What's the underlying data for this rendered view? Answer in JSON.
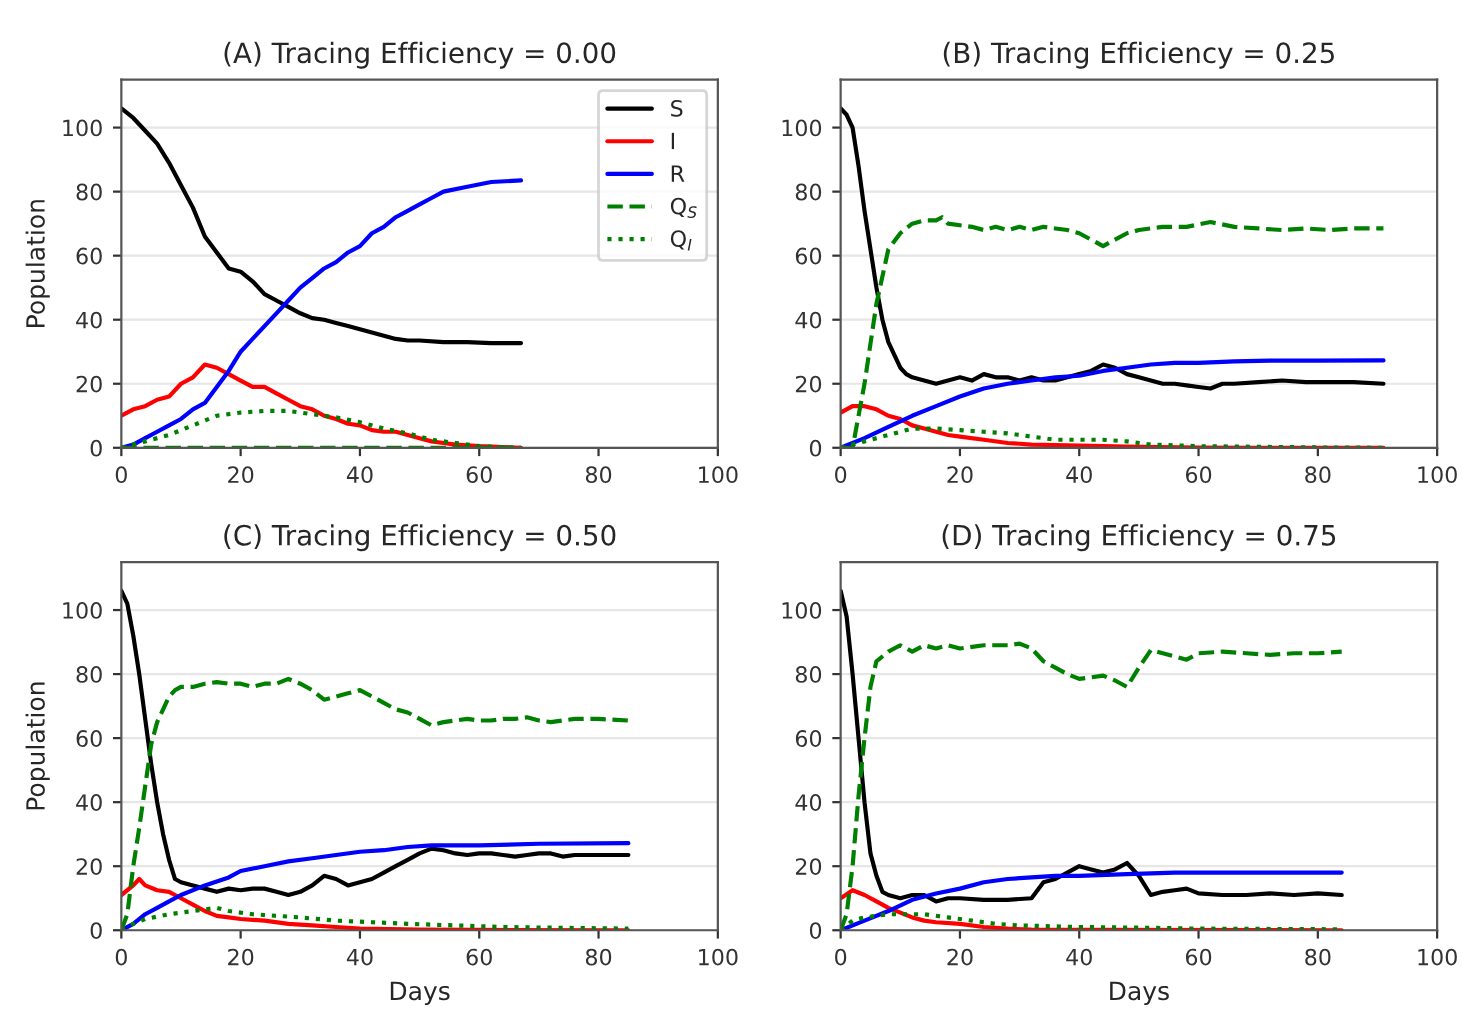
{
  "chart_data": [
    {
      "type": "line",
      "title": "(A) Tracing Efficiency = 0.00",
      "ylabel": "Population",
      "xlim": [
        0,
        100
      ],
      "ylim": [
        0,
        115
      ],
      "xticks": [
        0,
        20,
        40,
        60,
        80,
        100
      ],
      "yticks": [
        0,
        20,
        40,
        60,
        80,
        100
      ],
      "grid": "y",
      "legend": "top right",
      "series": [
        {
          "name": "S",
          "color": "#000000",
          "line_style": "solid",
          "x": [
            0,
            2,
            4,
            6,
            8,
            10,
            12,
            14,
            16,
            18,
            20,
            22,
            24,
            26,
            28,
            30,
            32,
            34,
            36,
            38,
            40,
            42,
            44,
            46,
            48,
            50,
            54,
            58,
            62,
            67
          ],
          "values": [
            106,
            103,
            99,
            95,
            89,
            82,
            75,
            66,
            61,
            56,
            55,
            52,
            48,
            46,
            44,
            42,
            40.5,
            40,
            39,
            38,
            37,
            36,
            35,
            34,
            33.5,
            33.5,
            33,
            33,
            32.7,
            32.7
          ]
        },
        {
          "name": "I",
          "color": "#ff0000",
          "line_style": "solid",
          "x": [
            0,
            2,
            4,
            6,
            8,
            10,
            12,
            14,
            16,
            18,
            20,
            22,
            24,
            26,
            28,
            30,
            32,
            34,
            36,
            38,
            40,
            42,
            44,
            46,
            48,
            50,
            52,
            54,
            56,
            60,
            64,
            67
          ],
          "values": [
            10,
            12,
            13,
            15,
            16,
            20,
            22,
            26,
            25,
            23,
            21,
            19,
            19,
            17,
            15,
            13,
            12,
            10,
            9,
            7.5,
            7,
            5.5,
            5,
            5,
            4,
            3,
            2,
            1.5,
            1,
            0.5,
            0.2,
            0
          ]
        },
        {
          "name": "R",
          "color": "#0000ff",
          "line_style": "solid",
          "x": [
            0,
            2,
            4,
            6,
            8,
            10,
            12,
            14,
            16,
            18,
            20,
            22,
            24,
            26,
            28,
            30,
            32,
            34,
            36,
            38,
            40,
            42,
            44,
            46,
            48,
            50,
            52,
            54,
            58,
            62,
            67
          ],
          "values": [
            0,
            1,
            3,
            5,
            7,
            9,
            12,
            14,
            19,
            24,
            30,
            34,
            38,
            42,
            46,
            50,
            53,
            56,
            58,
            61,
            63,
            67,
            69,
            72,
            74,
            76,
            78,
            80,
            81.5,
            83,
            83.5
          ]
        },
        {
          "name": "Q$_{S}$",
          "color": "#008000",
          "line_style": "dashed",
          "x": [
            0,
            67
          ],
          "values": [
            0,
            0
          ]
        },
        {
          "name": "Q$_{I}$",
          "color": "#008000",
          "line_style": "dotted",
          "x": [
            0,
            4,
            8,
            12,
            16,
            20,
            24,
            28,
            32,
            36,
            40,
            44,
            48,
            52,
            56,
            60,
            64,
            67
          ],
          "values": [
            0,
            2,
            4,
            7,
            10,
            11,
            11.5,
            11.5,
            10.5,
            9.5,
            8,
            6,
            4.5,
            2.5,
            1.5,
            0.5,
            0.2,
            0
          ]
        }
      ]
    },
    {
      "type": "line",
      "title": "(B) Tracing Efficiency = 0.25",
      "xlim": [
        0,
        100
      ],
      "ylim": [
        0,
        115
      ],
      "xticks": [
        0,
        20,
        40,
        60,
        80,
        100
      ],
      "yticks": [
        0,
        20,
        40,
        60,
        80,
        100
      ],
      "grid": "y",
      "series": [
        {
          "color": "#000000",
          "line_style": "solid",
          "x": [
            0,
            1,
            2,
            3,
            4,
            5,
            6,
            7,
            8,
            9,
            10,
            11,
            12,
            14,
            16,
            18,
            20,
            22,
            24,
            26,
            28,
            30,
            32,
            34,
            36,
            38,
            40,
            42,
            44,
            46,
            48,
            50,
            52,
            54,
            56,
            58,
            60,
            62,
            64,
            66,
            70,
            74,
            78,
            82,
            86,
            91
          ],
          "values": [
            106,
            104,
            100,
            88,
            74,
            62,
            50,
            40,
            33,
            29,
            25,
            23,
            22,
            21,
            20,
            21,
            22,
            21,
            23,
            22,
            22,
            21,
            22,
            21,
            21,
            22,
            23,
            24,
            26,
            25,
            23,
            22,
            21,
            20,
            20,
            19.5,
            19,
            18.5,
            20,
            20,
            20.5,
            21,
            20.5,
            20.5,
            20.5,
            20
          ]
        },
        {
          "color": "#ff0000",
          "line_style": "solid",
          "x": [
            0,
            2,
            4,
            6,
            8,
            10,
            12,
            14,
            16,
            18,
            20,
            24,
            28,
            32,
            40,
            50,
            60,
            70,
            91
          ],
          "values": [
            11,
            13,
            13,
            12,
            10,
            9,
            7,
            6,
            5,
            4,
            3.5,
            2.5,
            1.5,
            1,
            0.7,
            0.3,
            0.1,
            0,
            0
          ]
        },
        {
          "color": "#0000ff",
          "line_style": "solid",
          "x": [
            0,
            4,
            8,
            12,
            16,
            20,
            24,
            28,
            32,
            36,
            40,
            44,
            48,
            52,
            56,
            60,
            66,
            72,
            80,
            91
          ],
          "values": [
            0,
            3,
            6.5,
            10,
            13,
            16,
            18.5,
            20,
            21,
            22,
            22.5,
            24,
            25,
            26,
            26.5,
            26.5,
            27,
            27.2,
            27.2,
            27.3
          ]
        },
        {
          "color": "#008000",
          "line_style": "dashed",
          "x": [
            0,
            2,
            4,
            6,
            8,
            10,
            12,
            14,
            16,
            17,
            18,
            22,
            24,
            26,
            28,
            30,
            32,
            34,
            36,
            38,
            40,
            42,
            44,
            46,
            48,
            50,
            54,
            58,
            62,
            66,
            70,
            74,
            78,
            82,
            86,
            91
          ],
          "values": [
            0,
            0,
            20,
            45,
            62,
            67,
            70,
            71,
            71,
            72,
            70,
            69,
            68,
            69,
            68,
            69,
            68,
            69,
            68.5,
            68,
            67,
            65,
            63,
            65,
            67,
            68,
            69,
            69,
            70.5,
            69,
            68.5,
            68,
            68.5,
            68,
            68.5,
            68.5
          ]
        },
        {
          "color": "#008000",
          "line_style": "dotted",
          "x": [
            0,
            4,
            8,
            12,
            16,
            20,
            24,
            28,
            32,
            36,
            40,
            44,
            48,
            52,
            60,
            70,
            80,
            91
          ],
          "values": [
            0,
            2,
            4,
            6,
            6,
            5.5,
            5,
            4.5,
            3.5,
            2.5,
            2.5,
            2.5,
            2,
            1,
            0.5,
            0.3,
            0.1,
            0
          ]
        }
      ]
    },
    {
      "type": "line",
      "title": "(C) Tracing Efficiency = 0.50",
      "xlabel": "Days",
      "ylabel": "Population",
      "xlim": [
        0,
        100
      ],
      "ylim": [
        0,
        115
      ],
      "xticks": [
        0,
        20,
        40,
        60,
        80,
        100
      ],
      "yticks": [
        0,
        20,
        40,
        60,
        80,
        100
      ],
      "grid": "y",
      "series": [
        {
          "color": "#000000",
          "line_style": "solid",
          "x": [
            0,
            1,
            2,
            3,
            4,
            5,
            6,
            7,
            8,
            9,
            10,
            12,
            14,
            16,
            18,
            20,
            22,
            24,
            26,
            28,
            30,
            32,
            34,
            36,
            38,
            40,
            42,
            44,
            46,
            48,
            50,
            52,
            54,
            56,
            58,
            60,
            62,
            64,
            66,
            68,
            70,
            72,
            74,
            76,
            78,
            80,
            82,
            85
          ],
          "values": [
            106,
            102,
            92,
            80,
            66,
            52,
            40,
            30,
            22,
            16,
            15,
            14,
            13,
            12,
            13,
            12.5,
            13,
            13,
            12,
            11,
            12,
            14,
            17,
            16,
            14,
            15,
            16,
            18,
            20,
            22,
            24,
            25.5,
            25,
            24,
            23.5,
            24,
            24,
            23.5,
            23,
            23.5,
            24,
            24,
            23,
            23.5,
            23.5,
            23.5,
            23.5,
            23.5
          ]
        },
        {
          "color": "#ff0000",
          "line_style": "solid",
          "x": [
            0,
            2,
            3,
            4,
            6,
            8,
            10,
            12,
            14,
            16,
            18,
            20,
            24,
            28,
            32,
            36,
            40,
            50,
            60,
            85
          ],
          "values": [
            11,
            14,
            16,
            14,
            12.5,
            12,
            10,
            8,
            6,
            4.5,
            4,
            3.5,
            3,
            2,
            1.5,
            1,
            0.5,
            0.2,
            0.1,
            0
          ]
        },
        {
          "color": "#0000ff",
          "line_style": "solid",
          "x": [
            0,
            2,
            4,
            6,
            8,
            10,
            14,
            18,
            20,
            24,
            28,
            32,
            36,
            40,
            44,
            48,
            52,
            60,
            70,
            85
          ],
          "values": [
            0,
            2,
            5,
            7,
            9,
            11,
            14,
            16.5,
            18.5,
            20,
            21.5,
            22.5,
            23.5,
            24.5,
            25,
            26,
            26.5,
            26.5,
            27,
            27.2
          ]
        },
        {
          "color": "#008000",
          "line_style": "dashed",
          "x": [
            0,
            1,
            2,
            3,
            4,
            5,
            6,
            8,
            9,
            10,
            12,
            14,
            16,
            18,
            20,
            22,
            24,
            26,
            28,
            30,
            32,
            34,
            36,
            38,
            40,
            42,
            44,
            46,
            48,
            50,
            52,
            54,
            56,
            58,
            60,
            62,
            64,
            66,
            68,
            70,
            72,
            76,
            80,
            85
          ],
          "values": [
            0,
            5,
            20,
            32,
            45,
            58,
            65,
            73,
            75,
            76,
            76,
            77,
            77.5,
            77,
            77,
            76,
            77,
            77,
            78.5,
            77,
            75,
            72,
            73,
            74,
            75,
            73,
            71,
            69,
            68,
            66,
            64,
            65,
            65.5,
            66,
            65.5,
            65.5,
            66,
            66,
            66.5,
            65.5,
            65,
            66,
            66,
            65.5
          ]
        },
        {
          "color": "#008000",
          "line_style": "dotted",
          "x": [
            0,
            2,
            4,
            8,
            12,
            16,
            18,
            22,
            26,
            30,
            36,
            42,
            48,
            56,
            64,
            72,
            85
          ],
          "values": [
            0,
            2,
            3.5,
            5,
            6,
            7,
            6,
            5,
            4.5,
            4,
            3,
            2.5,
            2,
            1.5,
            1,
            0.8,
            0.5
          ]
        }
      ]
    },
    {
      "type": "line",
      "title": "(D) Tracing Efficiency = 0.75",
      "xlabel": "Days",
      "xlim": [
        0,
        100
      ],
      "ylim": [
        0,
        115
      ],
      "xticks": [
        0,
        20,
        40,
        60,
        80,
        100
      ],
      "yticks": [
        0,
        20,
        40,
        60,
        80,
        100
      ],
      "grid": "y",
      "series": [
        {
          "color": "#000000",
          "line_style": "solid",
          "x": [
            0,
            1,
            2,
            3,
            4,
            5,
            6,
            7,
            8,
            10,
            12,
            14,
            16,
            18,
            20,
            24,
            28,
            32,
            34,
            36,
            38,
            40,
            42,
            44,
            46,
            48,
            50,
            52,
            54,
            56,
            58,
            60,
            64,
            68,
            72,
            76,
            80,
            84
          ],
          "values": [
            106,
            98,
            80,
            60,
            40,
            24,
            17,
            12,
            11,
            10,
            11,
            11,
            9,
            10,
            10,
            9.5,
            9.5,
            10,
            15,
            16,
            18,
            20,
            19,
            18,
            19,
            21,
            17,
            11,
            12,
            12.5,
            13,
            11.5,
            11,
            11,
            11.5,
            11,
            11.5,
            11
          ]
        },
        {
          "color": "#ff0000",
          "line_style": "solid",
          "x": [
            0,
            2,
            4,
            6,
            8,
            10,
            12,
            14,
            16,
            20,
            24,
            28,
            32,
            40,
            84
          ],
          "values": [
            10,
            12.5,
            11,
            9,
            7,
            5.5,
            4,
            3,
            2.5,
            2,
            1,
            0.5,
            0.2,
            0.1,
            0
          ]
        },
        {
          "color": "#0000ff",
          "line_style": "solid",
          "x": [
            0,
            4,
            8,
            12,
            16,
            20,
            24,
            28,
            32,
            36,
            40,
            48,
            56,
            64,
            84
          ],
          "values": [
            0,
            3,
            6,
            9.5,
            11.5,
            13,
            15,
            16,
            16.5,
            17,
            17,
            17.5,
            18,
            18,
            18
          ]
        },
        {
          "color": "#008000",
          "line_style": "dashed",
          "x": [
            0,
            1,
            2,
            3,
            4,
            5,
            6,
            8,
            10,
            12,
            14,
            16,
            18,
            20,
            24,
            28,
            30,
            32,
            34,
            36,
            38,
            40,
            42,
            44,
            46,
            48,
            50,
            52,
            54,
            56,
            58,
            60,
            64,
            68,
            72,
            76,
            80,
            84
          ],
          "values": [
            0,
            5,
            20,
            42,
            60,
            76,
            84,
            87,
            89,
            87,
            89,
            88,
            89,
            88,
            89,
            89,
            89.5,
            88,
            84,
            82,
            80,
            78.5,
            79,
            79.5,
            78,
            76,
            82,
            87.5,
            86.5,
            85.5,
            84.5,
            86.5,
            87,
            86.5,
            86,
            86.5,
            86.5,
            87
          ]
        },
        {
          "color": "#008000",
          "line_style": "dotted",
          "x": [
            0,
            2,
            4,
            8,
            12,
            14,
            18,
            22,
            26,
            30,
            40,
            50,
            60,
            84
          ],
          "values": [
            0,
            3,
            4,
            5,
            5,
            5,
            4,
            3,
            2,
            1.5,
            1,
            0.8,
            0.5,
            0.3
          ]
        }
      ]
    }
  ]
}
